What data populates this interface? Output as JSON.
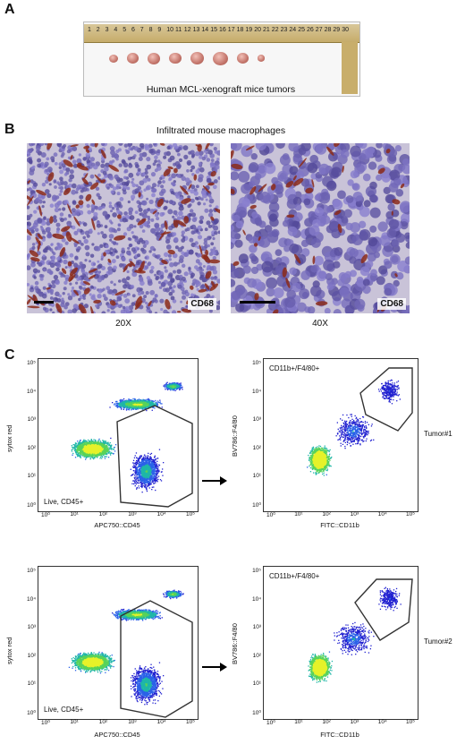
{
  "panelA": {
    "letter": "A",
    "caption": "Human MCL-xenograft mice tumors",
    "ruler_numbers": [
      "1",
      "2",
      "3",
      "4",
      "5",
      "6",
      "7",
      "8",
      "9",
      "10",
      "11",
      "12",
      "13",
      "14",
      "15",
      "16",
      "17",
      "18",
      "19",
      "20",
      "21",
      "22",
      "23",
      "24",
      "25",
      "26",
      "27",
      "28",
      "29",
      "30"
    ],
    "tumor_count": 8
  },
  "panelB": {
    "letter": "B",
    "title": "Infiltrated mouse macrophages",
    "left": {
      "stain": "CD68",
      "magnification": "20X"
    },
    "right": {
      "stain": "CD68",
      "magnification": "40X"
    }
  },
  "panelC": {
    "letter": "C",
    "rows": [
      {
        "left": {
          "gate": "Live, CD45+",
          "xlabel": "APC750::CD45",
          "ylabel": "sytox red"
        },
        "right": {
          "gate": "CD11b+/F4/80+",
          "xlabel": "FITC::CD11b",
          "ylabel": "BV786::F4/80"
        },
        "tumor": "Tumor#1"
      },
      {
        "left": {
          "gate": "Live, CD45+",
          "xlabel": "APC750::CD45",
          "ylabel": "sytox red"
        },
        "right": {
          "gate": "CD11b+/F4/80+",
          "xlabel": "FITC::CD11b",
          "ylabel": "BV786::F4/80"
        },
        "tumor": "Tumor#2"
      }
    ],
    "y_ticks": [
      "10⁵",
      "10⁴",
      "10³",
      "10²",
      "10¹",
      "10⁰"
    ],
    "x_ticks_left_top": [
      "10⁰",
      "10¹",
      "10²",
      "10³",
      "10⁴",
      "10⁵"
    ],
    "x_ticks_left_bottom": [
      "10⁰",
      "10¹",
      "10²",
      "10³",
      "10⁴",
      "10⁵"
    ],
    "x_ticks_right": [
      "10⁰",
      "10¹",
      "10²",
      "10³",
      "10⁴",
      "10⁵"
    ]
  }
}
